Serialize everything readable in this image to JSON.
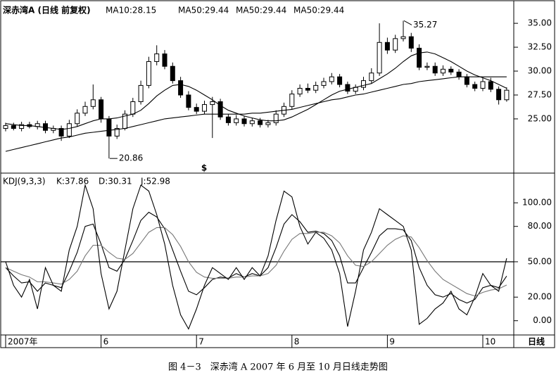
{
  "chart_data": [
    {
      "type": "candlestick",
      "title": "深赤湾A (日线 前复权)",
      "header": [
        "MA10:28.15",
        "MA50:29.44",
        "MA50:29.44",
        "MA50:29.44"
      ],
      "categories": [
        "2007年",
        null,
        null,
        null,
        null,
        null,
        null,
        null,
        null,
        null,
        null,
        null,
        "6",
        null,
        null,
        null,
        null,
        null,
        null,
        null,
        null,
        null,
        null,
        null,
        "7",
        null,
        null,
        null,
        null,
        null,
        null,
        null,
        null,
        null,
        null,
        null,
        "8",
        null,
        null,
        null,
        null,
        null,
        null,
        null,
        null,
        null,
        null,
        null,
        "9",
        null,
        null,
        null,
        null,
        null,
        null,
        null,
        null,
        null,
        null,
        null,
        "10",
        null,
        null,
        null
      ],
      "open": [
        24.0,
        24.3,
        24.0,
        24.4,
        24.2,
        24.5,
        23.8,
        24.0,
        23.2,
        24.5,
        25.6,
        26.3,
        27.0,
        25.0,
        23.2,
        24.0,
        25.5,
        26.8,
        28.5,
        31.0,
        31.8,
        30.5,
        29.0,
        27.5,
        26.2,
        25.8,
        26.5,
        26.8,
        25.2,
        24.6,
        25.0,
        24.5,
        24.8,
        24.4,
        24.6,
        25.5,
        26.3,
        27.6,
        28.2,
        28.0,
        28.5,
        28.9,
        29.4,
        28.6,
        27.9,
        28.3,
        29.0,
        29.8,
        33.0,
        32.2,
        33.4,
        33.6,
        32.4,
        30.4,
        30.5,
        29.8,
        30.2,
        29.9,
        29.4,
        28.6,
        28.2,
        28.9,
        28.1,
        27.0
      ],
      "high": [
        24.6,
        24.6,
        24.7,
        24.7,
        24.8,
        24.8,
        24.3,
        24.3,
        24.9,
        26.0,
        26.8,
        28.6,
        27.3,
        25.3,
        24.4,
        25.9,
        27.2,
        29.0,
        31.5,
        32.7,
        32.2,
        30.9,
        29.4,
        27.9,
        26.6,
        26.9,
        27.3,
        27.1,
        25.5,
        25.4,
        25.3,
        25.1,
        25.1,
        24.9,
        25.9,
        26.7,
        28.0,
        28.6,
        28.7,
        28.9,
        29.3,
        29.8,
        29.7,
        28.9,
        28.6,
        29.4,
        30.3,
        35.0,
        33.5,
        33.8,
        35.27,
        34.0,
        32.8,
        30.9,
        30.9,
        30.6,
        30.5,
        30.2,
        29.7,
        28.9,
        29.3,
        29.3,
        28.4,
        28.3
      ],
      "low": [
        23.7,
        23.8,
        23.7,
        24.0,
        23.9,
        23.5,
        23.5,
        22.7,
        23.0,
        24.2,
        25.3,
        26.0,
        24.6,
        20.86,
        22.9,
        23.8,
        25.2,
        26.5,
        28.2,
        30.6,
        30.2,
        28.7,
        27.2,
        25.9,
        25.5,
        25.5,
        23.0,
        24.9,
        24.3,
        24.3,
        24.2,
        24.2,
        24.1,
        24.1,
        24.3,
        25.2,
        26.0,
        27.3,
        27.7,
        27.7,
        28.2,
        28.6,
        28.3,
        27.6,
        27.6,
        28.0,
        28.7,
        29.5,
        31.8,
        31.9,
        33.1,
        32.0,
        30.1,
        30.1,
        29.5,
        29.5,
        29.6,
        29.1,
        28.3,
        27.9,
        27.9,
        27.8,
        26.5,
        26.8
      ],
      "close": [
        24.3,
        24.0,
        24.4,
        24.2,
        24.5,
        23.8,
        24.0,
        23.2,
        24.5,
        25.6,
        26.3,
        27.0,
        25.0,
        23.2,
        24.0,
        25.5,
        26.8,
        28.5,
        31.0,
        31.8,
        30.5,
        29.0,
        27.5,
        26.2,
        25.8,
        26.5,
        26.8,
        25.2,
        24.6,
        25.0,
        24.5,
        24.8,
        24.4,
        24.6,
        25.5,
        26.3,
        27.6,
        28.2,
        28.0,
        28.5,
        28.9,
        29.4,
        28.6,
        27.9,
        28.3,
        29.0,
        29.8,
        33.0,
        32.2,
        33.4,
        33.6,
        32.4,
        30.4,
        30.5,
        29.8,
        30.2,
        29.9,
        29.4,
        28.6,
        28.2,
        28.9,
        28.1,
        27.0,
        28.0
      ],
      "series": [
        {
          "color": "#000000",
          "values": [
            24.5,
            24.4,
            24.3,
            24.3,
            24.2,
            24.1,
            24.0,
            23.9,
            24.0,
            24.2,
            24.5,
            24.8,
            25.0,
            25.0,
            25.1,
            25.3,
            25.5,
            25.9,
            26.6,
            27.4,
            28.0,
            28.5,
            28.6,
            28.4,
            28.0,
            27.5,
            27.0,
            26.4,
            25.9,
            25.6,
            25.3,
            25.1,
            24.9,
            24.8,
            24.8,
            24.9,
            25.2,
            25.6,
            26.0,
            26.5,
            27.0,
            27.5,
            27.9,
            28.1,
            28.3,
            28.5,
            28.7,
            29.2,
            29.7,
            30.3,
            31.0,
            31.6,
            31.9,
            32.0,
            31.8,
            31.4,
            31.0,
            30.5,
            30.0,
            29.6,
            29.3,
            29.0,
            28.6,
            28.2
          ]
        },
        {
          "color": "#000000",
          "values": [
            21.6,
            21.8,
            22.0,
            22.2,
            22.4,
            22.6,
            22.8,
            23.0,
            23.1,
            23.3,
            23.5,
            23.6,
            23.7,
            23.8,
            23.9,
            24.0,
            24.2,
            24.4,
            24.6,
            24.8,
            25.0,
            25.1,
            25.2,
            25.3,
            25.4,
            25.5,
            25.5,
            25.5,
            25.5,
            25.5,
            25.5,
            25.6,
            25.6,
            25.7,
            25.8,
            25.9,
            26.0,
            26.2,
            26.4,
            26.6,
            26.8,
            27.0,
            27.1,
            27.3,
            27.5,
            27.6,
            27.8,
            28.0,
            28.2,
            28.4,
            28.6,
            28.7,
            28.9,
            29.0,
            29.1,
            29.2,
            29.3,
            29.4,
            29.4,
            29.4,
            29.4,
            29.4,
            29.4,
            29.4
          ]
        }
      ],
      "annotation": "$",
      "x_axis_label": "日线",
      "color": "#000000",
      "ylim": [
        19.4,
        36.85
      ],
      "yticks": [
        {
          "value": 35,
          "label": "35.00"
        },
        {
          "value": 32.5,
          "label": "32.50"
        },
        {
          "value": 30,
          "label": "30.00"
        },
        {
          "value": 27.5,
          "label": "27.50"
        },
        {
          "value": 25,
          "label": "25.00"
        }
      ]
    },
    {
      "type": "line",
      "title": "KDJ(9,3,3)",
      "header": [
        "K:37.86",
        "D:30.31",
        "J:52.98"
      ],
      "series": [
        {
          "color": "#000000",
          "values": [
            45,
            38,
            32,
            33,
            25,
            32,
            30,
            28,
            42,
            58,
            80,
            82,
            65,
            45,
            42,
            52,
            68,
            85,
            92,
            88,
            78,
            60,
            42,
            25,
            22,
            28,
            35,
            37,
            36,
            40,
            37,
            40,
            38,
            45,
            62,
            82,
            90,
            84,
            75,
            76,
            74,
            68,
            55,
            32,
            32,
            45,
            58,
            72,
            78,
            78,
            77,
            68,
            45,
            30,
            22,
            20,
            23,
            18,
            15,
            18,
            28,
            30,
            28,
            37.86
          ]
        },
        {
          "color": "#777777",
          "values": [
            45,
            42,
            39,
            37,
            33,
            33,
            32,
            31,
            35,
            42,
            55,
            64,
            64,
            58,
            53,
            52,
            57,
            66,
            75,
            79,
            79,
            73,
            63,
            50,
            41,
            37,
            36,
            36,
            36,
            37,
            37,
            38,
            38,
            40,
            47,
            59,
            69,
            74,
            74,
            75,
            75,
            72,
            66,
            55,
            47,
            46,
            50,
            57,
            64,
            69,
            72,
            71,
            62,
            51,
            42,
            35,
            31,
            27,
            23,
            21,
            24,
            26,
            27,
            30.31
          ]
        },
        {
          "color": "#000000",
          "values": [
            50,
            30,
            20,
            35,
            10,
            45,
            30,
            25,
            60,
            80,
            115,
            95,
            40,
            10,
            25,
            60,
            95,
            115,
            110,
            90,
            65,
            30,
            5,
            -7,
            10,
            30,
            45,
            40,
            35,
            45,
            35,
            45,
            38,
            55,
            85,
            110,
            105,
            80,
            65,
            75,
            70,
            60,
            40,
            -5,
            25,
            60,
            75,
            95,
            90,
            85,
            80,
            60,
            -3,
            2,
            10,
            15,
            25,
            10,
            5,
            20,
            40,
            30,
            25,
            52.98
          ]
        }
      ],
      "reference_line": 50,
      "ylim": [
        -11.5,
        124
      ],
      "yticks": [
        {
          "value": 100,
          "label": "100.00"
        },
        {
          "value": 80,
          "label": "80.00"
        },
        {
          "value": 50,
          "label": "50.00"
        },
        {
          "value": 20,
          "label": "20.00"
        },
        {
          "value": 0,
          "label": "0.00"
        }
      ]
    }
  ],
  "caption": "图 4－3　深赤湾 A 2007 年 6 月至 10 月日线走势图"
}
